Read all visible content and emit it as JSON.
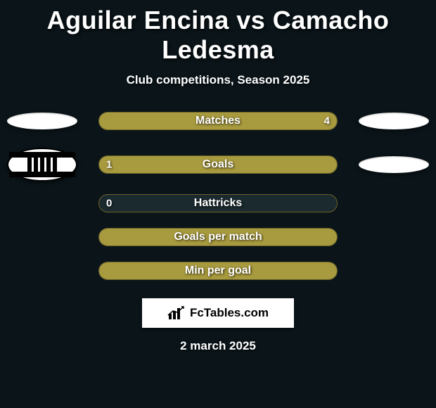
{
  "title": "Aguilar Encina vs Camacho Ledesma",
  "subtitle": "Club competitions, Season 2025",
  "footer_date": "2 march 2025",
  "logo_text": "FcTables.com",
  "colors": {
    "background": "#0a1419",
    "fill": "#a89a3e",
    "empty": "#1b2a2f",
    "border": "#6d632a",
    "text": "#ffffff"
  },
  "side_slots": {
    "row0": {
      "left": "oval",
      "right": "oval"
    },
    "row1": {
      "left": "crest",
      "right": "oval"
    }
  },
  "stats": [
    {
      "label": "Matches",
      "left_value": "",
      "right_value": "4",
      "left_ratio": 0.0,
      "right_ratio": 1.0
    },
    {
      "label": "Goals",
      "left_value": "1",
      "right_value": "",
      "left_ratio": 1.0,
      "right_ratio": 0.0
    },
    {
      "label": "Hattricks",
      "left_value": "0",
      "right_value": "",
      "left_ratio": 0.0,
      "right_ratio": 0.0
    },
    {
      "label": "Goals per match",
      "left_value": "",
      "right_value": "",
      "left_ratio": 1.0,
      "right_ratio": 0.0
    },
    {
      "label": "Min per goal",
      "left_value": "",
      "right_value": "",
      "left_ratio": 1.0,
      "right_ratio": 0.0
    }
  ]
}
